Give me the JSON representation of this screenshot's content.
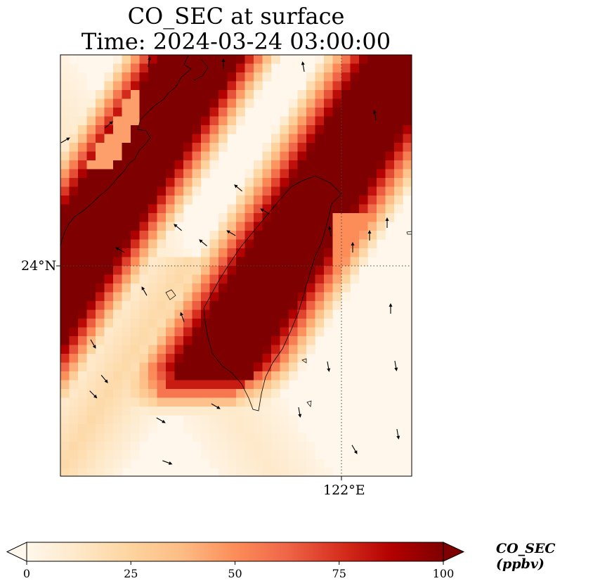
{
  "title_line1": "CO_SEC at surface",
  "title_line2": "Time: 2024-03-24 03:00:00",
  "map": {
    "lat_label": "24°N",
    "lon_label": "122°E",
    "gridline_style": "dotted",
    "coastline": "Taiwan and SE China coast",
    "field_pattern": "two diagonal SW–NE bands of high concentration (>100 ppbv)",
    "wind_arrows": "shown"
  },
  "colorbar": {
    "label": "CO_SEC (ppbv)",
    "ticks": [
      "0",
      "25",
      "50",
      "75",
      "100"
    ],
    "vmin": 0,
    "vmax": 100,
    "extend": "both",
    "colormap": "OrRd",
    "colors": [
      "#fff7ec",
      "#fee8c8",
      "#fdd49e",
      "#fdbb84",
      "#fc8d59",
      "#ef6548",
      "#d7301f",
      "#b30000",
      "#7f0000"
    ]
  }
}
